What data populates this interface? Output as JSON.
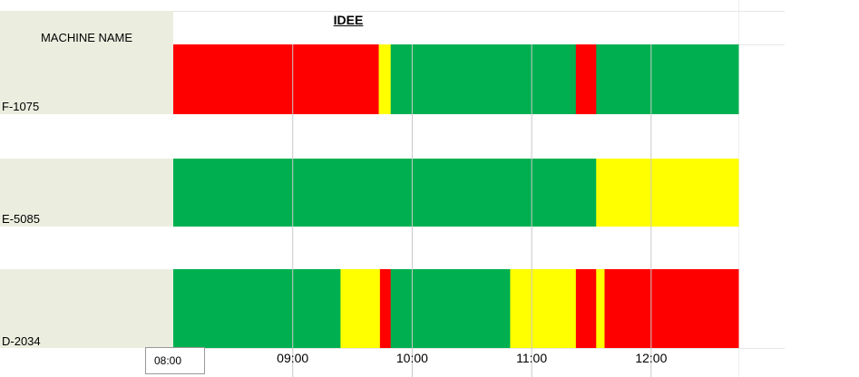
{
  "chart_data": {
    "type": "timeline",
    "title": "IDEE",
    "column_header": "MACHINE NAME",
    "x_unit": "hours",
    "x_range": [
      8.0,
      12.73
    ],
    "x_ticks": [
      "09:00",
      "10:00",
      "11:00",
      "12:00"
    ],
    "x_tick_values": [
      9,
      10,
      11,
      12
    ],
    "start_label": "08:00",
    "colors": {
      "red": "#ff0000",
      "yellow": "#ffff00",
      "green": "#00b050"
    },
    "rows": [
      {
        "name": "F-1075",
        "segments": [
          {
            "start": 8.0,
            "end": 9.72,
            "status": "red"
          },
          {
            "start": 9.72,
            "end": 9.82,
            "status": "yellow"
          },
          {
            "start": 9.82,
            "end": 11.37,
            "status": "green"
          },
          {
            "start": 11.37,
            "end": 11.54,
            "status": "red"
          },
          {
            "start": 11.54,
            "end": 12.73,
            "status": "green"
          }
        ]
      },
      {
        "name": "E-5085",
        "segments": [
          {
            "start": 8.0,
            "end": 11.54,
            "status": "green"
          },
          {
            "start": 11.54,
            "end": 12.73,
            "status": "yellow"
          }
        ]
      },
      {
        "name": "D-2034",
        "segments": [
          {
            "start": 8.0,
            "end": 9.4,
            "status": "green"
          },
          {
            "start": 9.4,
            "end": 9.73,
            "status": "yellow"
          },
          {
            "start": 9.73,
            "end": 9.82,
            "status": "red"
          },
          {
            "start": 9.82,
            "end": 10.82,
            "status": "green"
          },
          {
            "start": 10.82,
            "end": 11.37,
            "status": "yellow"
          },
          {
            "start": 11.37,
            "end": 11.54,
            "status": "red"
          },
          {
            "start": 11.54,
            "end": 11.61,
            "status": "yellow"
          },
          {
            "start": 11.61,
            "end": 12.73,
            "status": "red"
          }
        ]
      }
    ]
  }
}
